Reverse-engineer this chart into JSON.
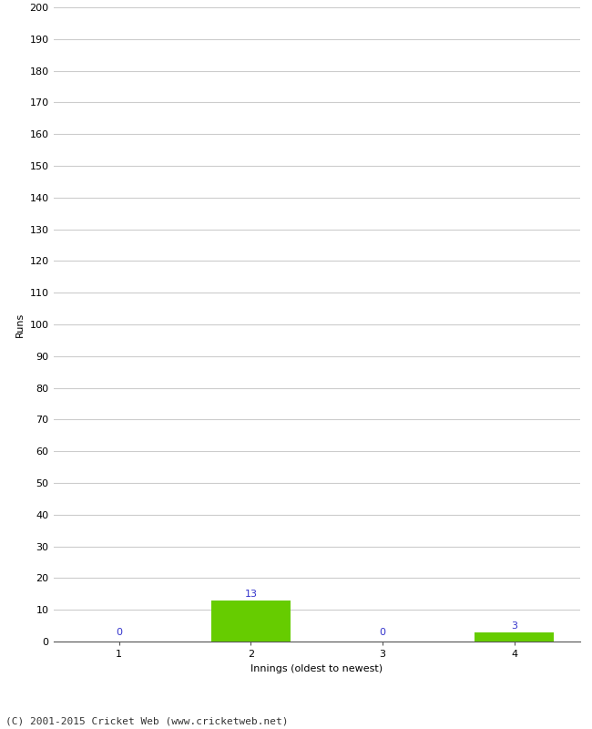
{
  "categories": [
    1,
    2,
    3,
    4
  ],
  "values": [
    0,
    13,
    0,
    3
  ],
  "bar_colors": [
    "#66cc00",
    "#66cc00",
    "#66cc00",
    "#66cc00"
  ],
  "xlabel": "Innings (oldest to newest)",
  "ylabel": "Runs",
  "ylim": [
    0,
    200
  ],
  "yticks": [
    0,
    10,
    20,
    30,
    40,
    50,
    60,
    70,
    80,
    90,
    100,
    110,
    120,
    130,
    140,
    150,
    160,
    170,
    180,
    190,
    200
  ],
  "value_label_color": "#3333cc",
  "bar_width": 0.6,
  "footer": "(C) 2001-2015 Cricket Web (www.cricketweb.net)",
  "background_color": "#ffffff",
  "grid_color": "#cccccc",
  "axis_label_fontsize": 8,
  "tick_fontsize": 8,
  "value_fontsize": 8,
  "footer_fontsize": 8
}
